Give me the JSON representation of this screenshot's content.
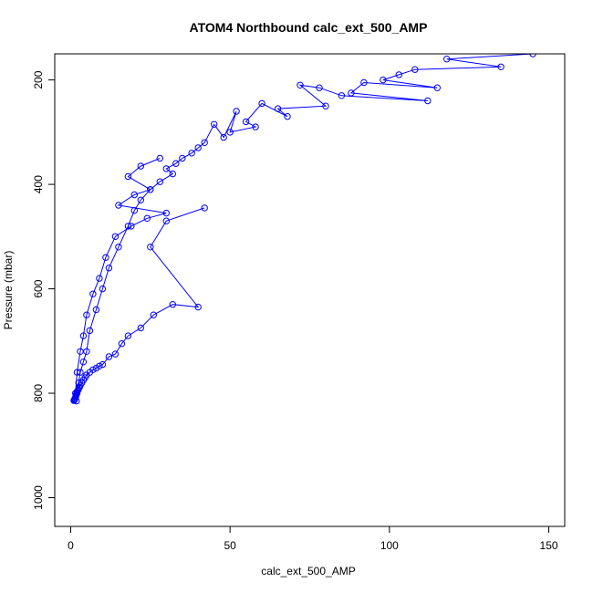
{
  "chart_data": {
    "type": "scatter",
    "title": "ATOM4 Northbound calc_ext_500_AMP",
    "xlabel": "calc_ext_500_AMP",
    "ylabel": "Pressure (mbar)",
    "xlim": [
      -5,
      155
    ],
    "ylim": [
      1055,
      150
    ],
    "y_reversed": true,
    "x_ticks": [
      0,
      50,
      100,
      150
    ],
    "y_ticks": [
      200,
      400,
      600,
      800,
      1000
    ],
    "grid": false,
    "legend": "none",
    "series_style": "points connected by lines",
    "color": "#0000ff",
    "series": [
      {
        "x": [
          145,
          118,
          135,
          108,
          103,
          98,
          115,
          92,
          88,
          112,
          85,
          78,
          72,
          80,
          65,
          68,
          60,
          55,
          58,
          50,
          52,
          48,
          45,
          42,
          40,
          38,
          35,
          33,
          30,
          32,
          28,
          25,
          22,
          20,
          18,
          15,
          12,
          10,
          8,
          6,
          5,
          4,
          3,
          2.5,
          2,
          1.8
        ],
        "y": [
          150,
          160,
          175,
          180,
          190,
          200,
          215,
          205,
          225,
          240,
          230,
          215,
          210,
          250,
          255,
          270,
          245,
          280,
          290,
          300,
          260,
          310,
          285,
          320,
          330,
          340,
          350,
          360,
          370,
          380,
          395,
          410,
          430,
          450,
          480,
          520,
          560,
          600,
          640,
          680,
          720,
          740,
          760,
          780,
          800,
          815
        ]
      },
      {
        "x": [
          42,
          30,
          25,
          40,
          32,
          26,
          22,
          18,
          16,
          14,
          12,
          10,
          9,
          8,
          7,
          6,
          5,
          4.5,
          4,
          3.5,
          3,
          2.8,
          2.6,
          2.4,
          2.2,
          2,
          1.9,
          1.8,
          1.7,
          1.6,
          1.5,
          1.4,
          1.3,
          1.2,
          1.1,
          1.0
        ],
        "y": [
          445,
          470,
          520,
          635,
          630,
          650,
          675,
          690,
          705,
          725,
          730,
          745,
          748,
          752,
          755,
          760,
          765,
          770,
          775,
          780,
          785,
          788,
          790,
          793,
          795,
          798,
          800,
          802,
          804,
          806,
          808,
          810,
          811,
          812,
          813,
          814
        ]
      },
      {
        "x": [
          28,
          22,
          18,
          25,
          20,
          15,
          30,
          24,
          19,
          14,
          11,
          9,
          7,
          5,
          4,
          3,
          2,
          1.5
        ],
        "y": [
          350,
          365,
          385,
          410,
          420,
          440,
          455,
          465,
          480,
          500,
          540,
          580,
          610,
          650,
          690,
          720,
          760,
          800
        ]
      }
    ]
  }
}
